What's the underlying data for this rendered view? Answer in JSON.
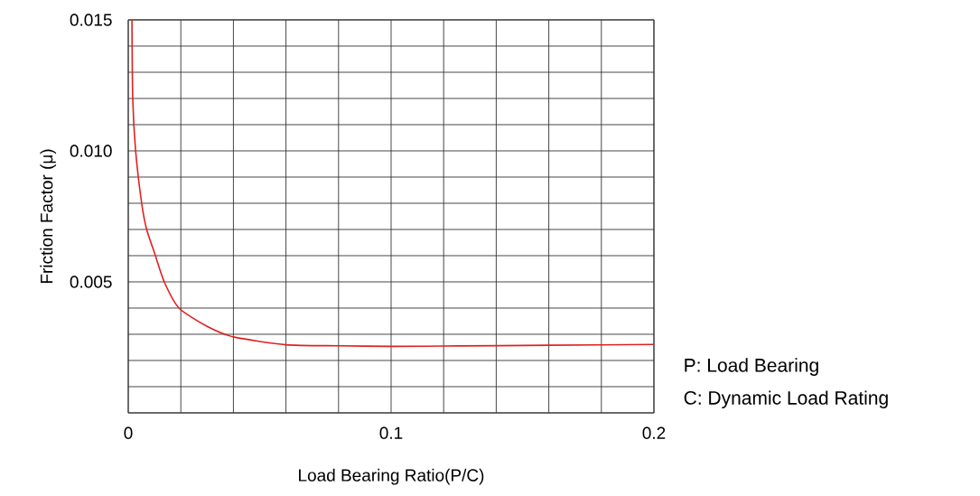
{
  "chart_data": {
    "type": "line",
    "xlabel": "Load Bearing Ratio(P/C)",
    "ylabel": "Friction Factor (μ)",
    "x": [
      0.0014,
      0.0017,
      0.0028,
      0.0051,
      0.007,
      0.01,
      0.0137,
      0.0193,
      0.03,
      0.04,
      0.06,
      0.08,
      0.1,
      0.12,
      0.16,
      0.2
    ],
    "series": [
      {
        "color": "#e02020",
        "values": [
          0.015,
          0.012,
          0.01,
          0.008,
          0.007,
          0.0061,
          0.005,
          0.004,
          0.0033,
          0.0029,
          0.0026,
          0.00256,
          0.00254,
          0.00255,
          0.00258,
          0.00261
        ]
      }
    ],
    "xlim": [
      0,
      0.2
    ],
    "ylim": [
      0,
      0.015
    ],
    "xticks": [
      {
        "value": 0,
        "label": "0"
      },
      {
        "value": 0.02,
        "label": null
      },
      {
        "value": 0.04,
        "label": null
      },
      {
        "value": 0.06,
        "label": null
      },
      {
        "value": 0.08,
        "label": null
      },
      {
        "value": 0.1,
        "label": "0.1"
      },
      {
        "value": 0.12,
        "label": null
      },
      {
        "value": 0.14,
        "label": null
      },
      {
        "value": 0.16,
        "label": null
      },
      {
        "value": 0.18,
        "label": null
      },
      {
        "value": 0.2,
        "label": "0.2"
      }
    ],
    "yticks": [
      {
        "value": 0,
        "label": null
      },
      {
        "value": 0.001,
        "label": null
      },
      {
        "value": 0.002,
        "label": null
      },
      {
        "value": 0.003,
        "label": null
      },
      {
        "value": 0.004,
        "label": null
      },
      {
        "value": 0.005,
        "label": "0.005"
      },
      {
        "value": 0.006,
        "label": null
      },
      {
        "value": 0.007,
        "label": null
      },
      {
        "value": 0.008,
        "label": null
      },
      {
        "value": 0.009,
        "label": null
      },
      {
        "value": 0.01,
        "label": "0.010"
      },
      {
        "value": 0.011,
        "label": null
      },
      {
        "value": 0.012,
        "label": null
      },
      {
        "value": 0.013,
        "label": null
      },
      {
        "value": 0.014,
        "label": null
      },
      {
        "value": 0.015,
        "label": "0.015"
      }
    ],
    "grid": true,
    "marker": "none",
    "line_style": "solid",
    "annotations": [
      "P: Load Bearing",
      "C: Dynamic Load Rating"
    ]
  }
}
